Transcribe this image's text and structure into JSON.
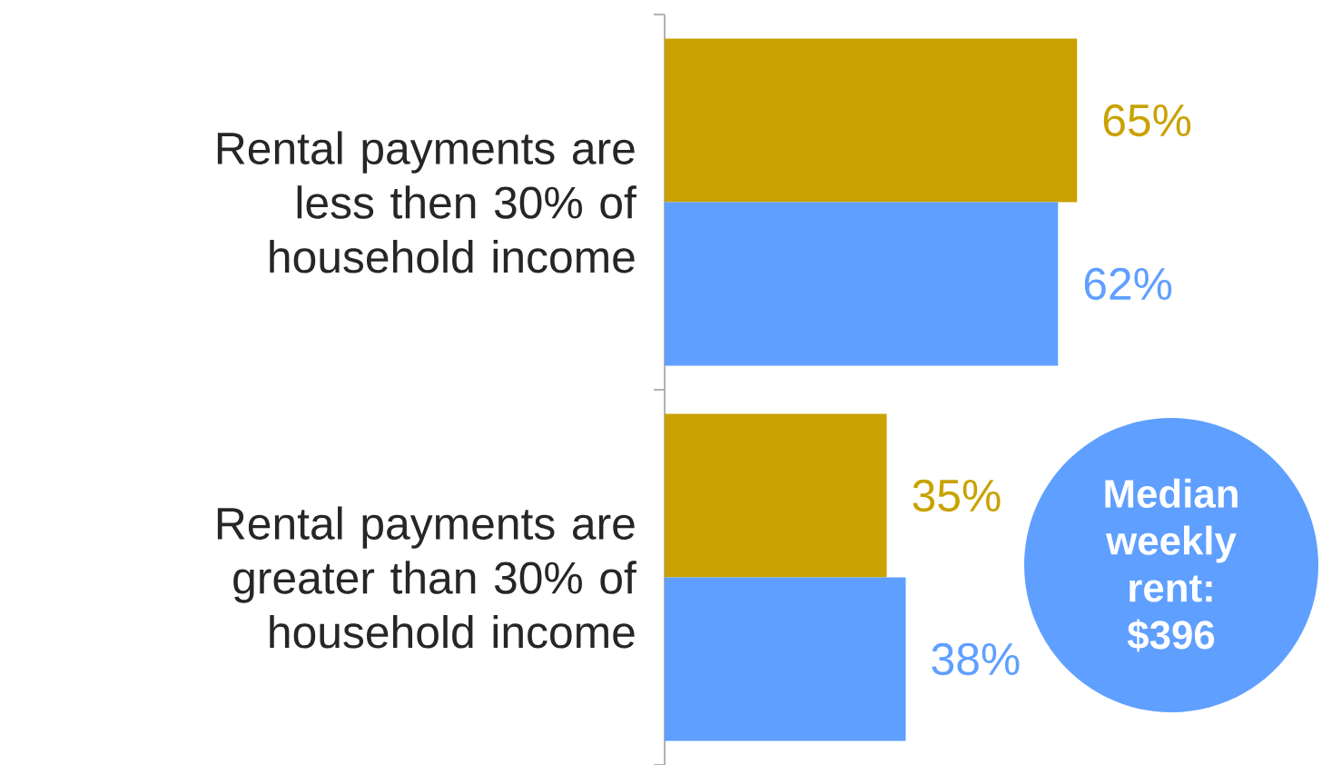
{
  "chart_data": {
    "type": "bar",
    "orientation": "horizontal",
    "categories": [
      "Rental payments are less then 30% of household income",
      "Rental payments are greater than 30% of household income"
    ],
    "series": [
      {
        "color": "#c9a200",
        "values": [
          65,
          35
        ],
        "value_labels": [
          "65%",
          "35%"
        ]
      },
      {
        "color": "#5f9fff",
        "values": [
          62,
          38
        ],
        "value_labels": [
          "62%",
          "38%"
        ]
      }
    ],
    "tick_labels": "y",
    "annotations": [
      "Median weekly rent: $396"
    ]
  }
}
